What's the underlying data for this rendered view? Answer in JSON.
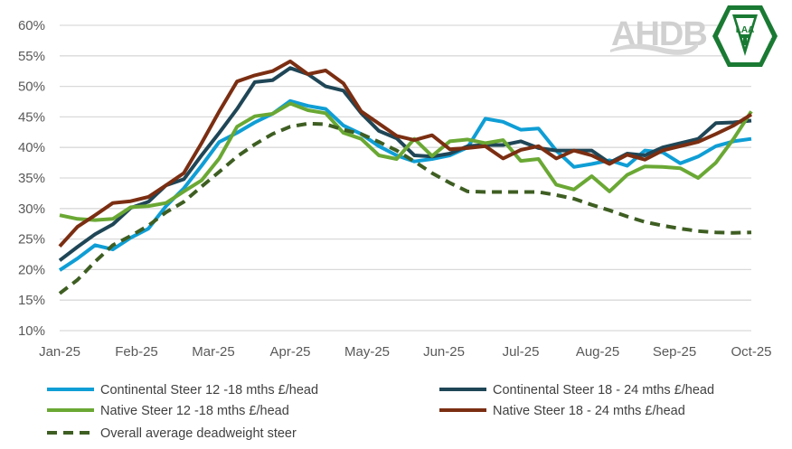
{
  "logos": {
    "ahdb": "AHDB",
    "laa": "LAA",
    "laa_ring_top": "LIVESTOCK",
    "laa_ring_left": "AUCTIONEERS",
    "laa_ring_right": "ASSOCIATION"
  },
  "chart_data": {
    "type": "line",
    "title": "",
    "xlabel": "",
    "ylabel": "",
    "ylim": [
      10,
      60
    ],
    "y_unit": "%",
    "y_ticks": [
      "10%",
      "15%",
      "20%",
      "25%",
      "30%",
      "35%",
      "40%",
      "45%",
      "50%",
      "55%",
      "60%"
    ],
    "x_ticks": [
      "Jan-25",
      "Feb-25",
      "Mar-25",
      "Apr-25",
      "May-25",
      "Jun-25",
      "Jul-25",
      "Aug-25",
      "Sep-25",
      "Oct-25"
    ],
    "x_spacing": "weekly",
    "grid": "horizontal",
    "legend_position": "bottom",
    "series": [
      {
        "name": "Continental Steer 12 -18 mths £/head",
        "color": "#0f9ed5",
        "dash": false,
        "values": [
          19.9,
          21.8,
          24,
          23.3,
          25.2,
          26.7,
          30.4,
          33.3,
          37,
          40.9,
          42.4,
          44.1,
          45.5,
          47.6,
          46.8,
          46.3,
          43.6,
          42.2,
          40.2,
          38.7,
          37.7,
          38.1,
          38.7,
          40,
          44.7,
          44.2,
          42.9,
          43.1,
          39.5,
          36.8,
          37.3,
          37.9,
          37,
          39.5,
          39.2,
          37.4,
          38.5,
          40.2,
          41,
          41.4
        ]
      },
      {
        "name": "Continental Steer 18 - 24 mths £/head",
        "color": "#1f4656",
        "dash": false,
        "values": [
          21.5,
          23.7,
          25.8,
          27.4,
          30.1,
          31.1,
          33.8,
          34.8,
          38.7,
          42.4,
          46.3,
          50.7,
          51,
          53,
          52,
          50,
          49.3,
          45.6,
          42.7,
          41.5,
          38.7,
          38.5,
          39,
          40.2,
          40.4,
          40.4,
          41,
          39.9,
          39.5,
          39.5,
          39.5,
          37.5,
          39,
          38.7,
          40,
          40.7,
          41.4,
          44,
          44.1,
          44.4
        ]
      },
      {
        "name": "Native Steer 12 -18 mths £/head",
        "color": "#6aa834",
        "dash": false,
        "values": [
          28.9,
          28.3,
          28.1,
          28.3,
          30.2,
          30.4,
          30.9,
          32.8,
          34.6,
          38.2,
          43.4,
          45.1,
          45.5,
          47.2,
          46.1,
          45.6,
          42.4,
          41.4,
          38.7,
          38.1,
          41.4,
          38.6,
          41,
          41.3,
          40.7,
          41.2,
          37.8,
          38.1,
          33.9,
          33.1,
          35.3,
          32.8,
          35.5,
          36.9,
          36.8,
          36.6,
          35,
          37.5,
          41.4,
          45.9
        ]
      },
      {
        "name": "Native Steer 18 - 24 mths £/head",
        "color": "#7b2e12",
        "dash": false,
        "values": [
          23.8,
          27,
          28.9,
          30.9,
          31.2,
          31.9,
          33.8,
          35.8,
          40.7,
          45.9,
          50.8,
          51.8,
          52.5,
          54.1,
          52,
          52.6,
          50.5,
          45.9,
          43.9,
          41.9,
          41.2,
          42,
          39.7,
          39.9,
          40.2,
          38.2,
          39.6,
          40.2,
          38.2,
          39.5,
          38.7,
          37.3,
          38.8,
          38,
          39.5,
          40.2,
          40.9,
          42.2,
          43.6,
          45.4
        ]
      },
      {
        "name": "Overall average deadweight steer",
        "color": "#3e5e22",
        "dash": true,
        "values": [
          16.1,
          18.3,
          21.3,
          24,
          25.5,
          27.2,
          29.4,
          31.1,
          33.6,
          36,
          38.5,
          40.5,
          42.2,
          43.4,
          43.9,
          43.8,
          42.9,
          42.2,
          40.9,
          39.5,
          37.7,
          35.8,
          34.2,
          32.8,
          32.7,
          32.7,
          32.7,
          32.7,
          32.2,
          31.6,
          30.6,
          29.7,
          28.7,
          27.8,
          27.2,
          26.7,
          26.3,
          26.1,
          26,
          26.1
        ]
      }
    ]
  }
}
